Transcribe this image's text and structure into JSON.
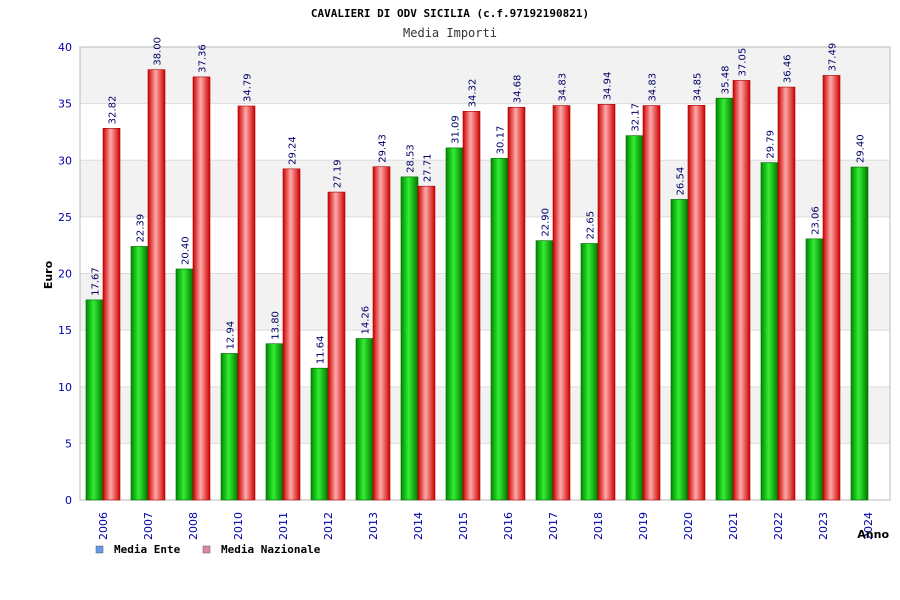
{
  "chart_data": {
    "type": "bar",
    "title": "CAVALIERI DI ODV SICILIA (c.f.97192190821)",
    "subtitle": "Media Importi",
    "xlabel": "Anno",
    "ylabel": "Euro",
    "ylim": [
      0,
      40
    ],
    "yticks": [
      "0",
      "5",
      "10",
      "15",
      "20",
      "25",
      "30",
      "35",
      "40"
    ],
    "categories": [
      "2006",
      "2007",
      "2008",
      "2010",
      "2011",
      "2012",
      "2013",
      "2014",
      "2015",
      "2016",
      "2017",
      "2018",
      "2019",
      "2020",
      "2021",
      "2022",
      "2023",
      "2024"
    ],
    "series": [
      {
        "name": "Media Ente",
        "color": "#00aa00",
        "values": [
          17.67,
          22.39,
          20.4,
          12.94,
          13.8,
          11.64,
          14.26,
          28.53,
          31.09,
          30.17,
          22.9,
          22.65,
          32.17,
          26.54,
          35.48,
          29.79,
          23.06,
          29.4
        ],
        "labels": [
          "17.67",
          "22.39",
          "20.40",
          "12.94",
          "13.80",
          "11.64",
          "14.26",
          "28.53",
          "31.09",
          "30.17",
          "22.90",
          "22.65",
          "32.17",
          "26.54",
          "35.48",
          "29.79",
          "23.06",
          "29.40"
        ]
      },
      {
        "name": "Media Nazionale",
        "color": "#ee2222",
        "values": [
          32.82,
          38.0,
          37.36,
          34.79,
          29.24,
          27.19,
          29.43,
          27.71,
          34.32,
          34.68,
          34.83,
          34.94,
          34.83,
          34.85,
          37.05,
          36.46,
          37.49,
          null
        ],
        "labels": [
          "32.82",
          "38.00",
          "37.36",
          "34.79",
          "29.24",
          "27.19",
          "29.43",
          "27.71",
          "34.32",
          "34.68",
          "34.83",
          "34.94",
          "34.83",
          "34.85",
          "37.05",
          "36.46",
          "37.49",
          null
        ]
      }
    ],
    "legend": {
      "placement": "bottom-left",
      "items": [
        {
          "label": "Media Ente",
          "color": "#6699ee"
        },
        {
          "label": "Media Nazionale",
          "color": "#dd88aa"
        }
      ]
    },
    "grid": true,
    "band_colors": [
      "#f2f2f2",
      "#ffffff"
    ]
  }
}
